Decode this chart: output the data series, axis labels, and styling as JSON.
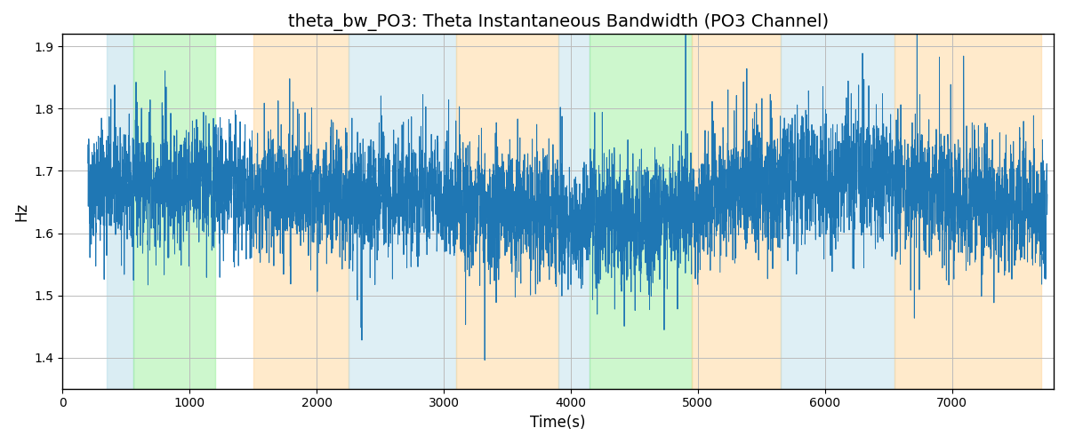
{
  "title": "theta_bw_PO3: Theta Instantaneous Bandwidth (PO3 Channel)",
  "xlabel": "Time(s)",
  "ylabel": "Hz",
  "ylim": [
    1.35,
    1.92
  ],
  "xlim": [
    150,
    7800
  ],
  "line_color": "#1f77b4",
  "line_width": 0.7,
  "background_color": "#ffffff",
  "grid_color": "#bbbbbb",
  "title_fontsize": 14,
  "axis_fontsize": 12,
  "seed": 42,
  "n_points": 7550,
  "x_start": 200,
  "x_end": 7750,
  "bands": [
    {
      "start": 350,
      "end": 560,
      "color": "#add8e6",
      "alpha": 0.45
    },
    {
      "start": 560,
      "end": 1200,
      "color": "#90ee90",
      "alpha": 0.45
    },
    {
      "start": 1500,
      "end": 2250,
      "color": "#ffd699",
      "alpha": 0.5
    },
    {
      "start": 2250,
      "end": 3100,
      "color": "#add8e6",
      "alpha": 0.4
    },
    {
      "start": 3100,
      "end": 3900,
      "color": "#ffd699",
      "alpha": 0.5
    },
    {
      "start": 3900,
      "end": 4150,
      "color": "#add8e6",
      "alpha": 0.4
    },
    {
      "start": 4150,
      "end": 4950,
      "color": "#90ee90",
      "alpha": 0.45
    },
    {
      "start": 4950,
      "end": 5650,
      "color": "#ffd699",
      "alpha": 0.5
    },
    {
      "start": 5650,
      "end": 6550,
      "color": "#add8e6",
      "alpha": 0.4
    },
    {
      "start": 6550,
      "end": 7700,
      "color": "#ffd699",
      "alpha": 0.5
    }
  ],
  "yticks": [
    1.4,
    1.5,
    1.6,
    1.7,
    1.8,
    1.9
  ],
  "xticks": [
    0,
    1000,
    2000,
    3000,
    4000,
    5000,
    6000,
    7000
  ]
}
